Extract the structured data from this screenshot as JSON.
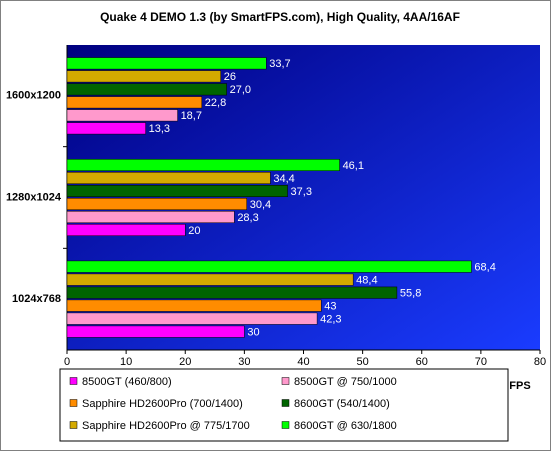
{
  "chart_data": {
    "type": "hbar",
    "title": "Quake 4 DEMO 1.3 (by SmartFPS.com), High Quality, 4AA/16AF",
    "x_label": "FPS",
    "categories": [
      "1600x1200",
      "1280x1024",
      "1024x768"
    ],
    "series": [
      {
        "name": "8500GT (460/800)",
        "color": "#ff00ff",
        "values": [
          13.3,
          20,
          30
        ],
        "value_labels": [
          "13,3",
          "20",
          "30"
        ]
      },
      {
        "name": "8500GT @ 750/1000",
        "color": "#ff99cc",
        "values": [
          18.7,
          28.3,
          42.3
        ],
        "value_labels": [
          "18,7",
          "28,3",
          "42,3"
        ]
      },
      {
        "name": "Sapphire HD2600Pro (700/1400)",
        "color": "#ff8c00",
        "values": [
          22.8,
          30.4,
          43
        ],
        "value_labels": [
          "22,8",
          "30,4",
          "43"
        ]
      },
      {
        "name": "8600GT (540/1400)",
        "color": "#006400",
        "values": [
          27.0,
          37.3,
          55.8
        ],
        "value_labels": [
          "27,0",
          "37,3",
          "55,8"
        ]
      },
      {
        "name": "Sapphire HD2600Pro @ 775/1700",
        "color": "#d4aa00",
        "values": [
          26,
          34.4,
          48.4
        ],
        "value_labels": [
          "26",
          "34,4",
          "48,4"
        ]
      },
      {
        "name": "8600GT @ 630/1800",
        "color": "#00ff00",
        "values": [
          33.7,
          46.1,
          68.4
        ],
        "value_labels": [
          "33,7",
          "46,1",
          "68,4"
        ]
      }
    ],
    "xlim": [
      0,
      80
    ],
    "xticks": [
      0,
      10,
      20,
      30,
      40,
      50,
      60,
      70,
      80
    ],
    "grid": false
  }
}
